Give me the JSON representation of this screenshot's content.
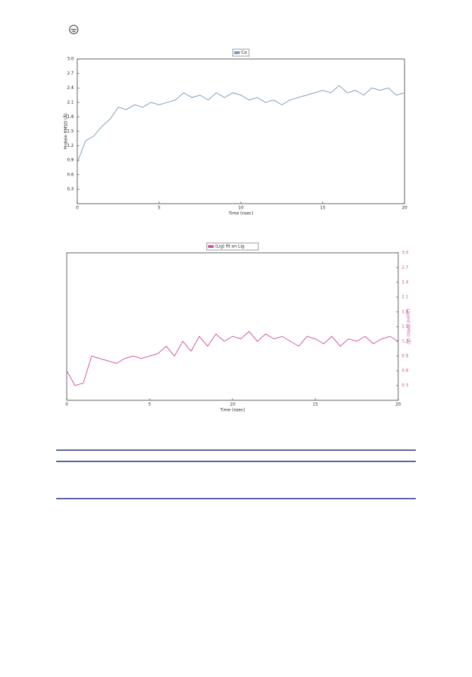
{
  "chart_data": [
    {
      "type": "line",
      "legend": "top",
      "xlabel": "Time (nsec)",
      "ylabel": "Protein RMSD (Å)",
      "xlim": [
        0,
        20
      ],
      "xticks": [
        0,
        5,
        10,
        15,
        20
      ],
      "ylim": [
        0,
        3
      ],
      "yticks": [
        0.3,
        0.6,
        0.9,
        1.2,
        1.5,
        1.8,
        2.1,
        2.4,
        2.7,
        {
          "value": 3,
          "label": "3.0"
        }
      ],
      "x": [
        0,
        0.5,
        1,
        1.5,
        2,
        2.5,
        3,
        3.5,
        4,
        4.5,
        5,
        5.5,
        6,
        6.5,
        7,
        7.5,
        8,
        8.5,
        9,
        9.5,
        10,
        10.5,
        11,
        11.5,
        12,
        12.5,
        13,
        13.5,
        14,
        14.5,
        15,
        15.5,
        16,
        16.5,
        17,
        17.5,
        18,
        18.5,
        19,
        19.5,
        20
      ],
      "series": [
        {
          "name": "Cα",
          "color": "#7a9bb5",
          "values": [
            0.85,
            1.3,
            1.4,
            1.6,
            1.75,
            2.0,
            1.95,
            2.05,
            2.0,
            2.1,
            2.05,
            2.1,
            2.15,
            2.3,
            2.2,
            2.25,
            2.15,
            2.3,
            2.2,
            2.3,
            2.25,
            2.15,
            2.2,
            2.1,
            2.15,
            2.05,
            2.15,
            2.2,
            2.25,
            2.3,
            2.35,
            2.3,
            2.45,
            2.3,
            2.35,
            2.25,
            2.4,
            2.35,
            2.4,
            2.25,
            2.3
          ]
        }
      ]
    },
    {
      "type": "line",
      "legend": "top",
      "xlabel": "Time (nsec)",
      "y2label": "Ligand RMSD (Å)",
      "xlim": [
        0,
        20
      ],
      "xticks": [
        0,
        5,
        10,
        15,
        20
      ],
      "y2lim": [
        0,
        3
      ],
      "y2ticks": [
        0.3,
        0.6,
        0.9,
        1.2,
        1.5,
        1.8,
        2.1,
        2.4,
        2.7,
        {
          "value": 3,
          "label": "3.0"
        }
      ],
      "x": [
        0,
        0.5,
        1,
        1.5,
        2,
        2.5,
        3,
        3.5,
        4,
        4.5,
        5,
        5.5,
        6,
        6.5,
        7,
        7.5,
        8,
        8.5,
        9,
        9.5,
        10,
        10.5,
        11,
        11.5,
        12,
        12.5,
        13,
        13.5,
        14,
        14.5,
        15,
        15.5,
        16,
        16.5,
        17,
        17.5,
        18,
        18.5,
        19,
        19.5,
        20
      ],
      "series": [
        {
          "name": "(Lig) fit on Lig",
          "color": "#d050a0",
          "axis": "y2",
          "values": [
            0.6,
            0.3,
            0.35,
            0.9,
            0.85,
            0.8,
            0.75,
            0.85,
            0.9,
            0.85,
            0.9,
            0.95,
            1.1,
            0.9,
            1.2,
            1.0,
            1.3,
            1.1,
            1.35,
            1.2,
            1.3,
            1.25,
            1.4,
            1.2,
            1.35,
            1.25,
            1.3,
            1.2,
            1.1,
            1.3,
            1.25,
            1.15,
            1.3,
            1.1,
            1.25,
            1.2,
            1.3,
            1.15,
            1.25,
            1.3,
            1.2
          ]
        }
      ]
    }
  ]
}
